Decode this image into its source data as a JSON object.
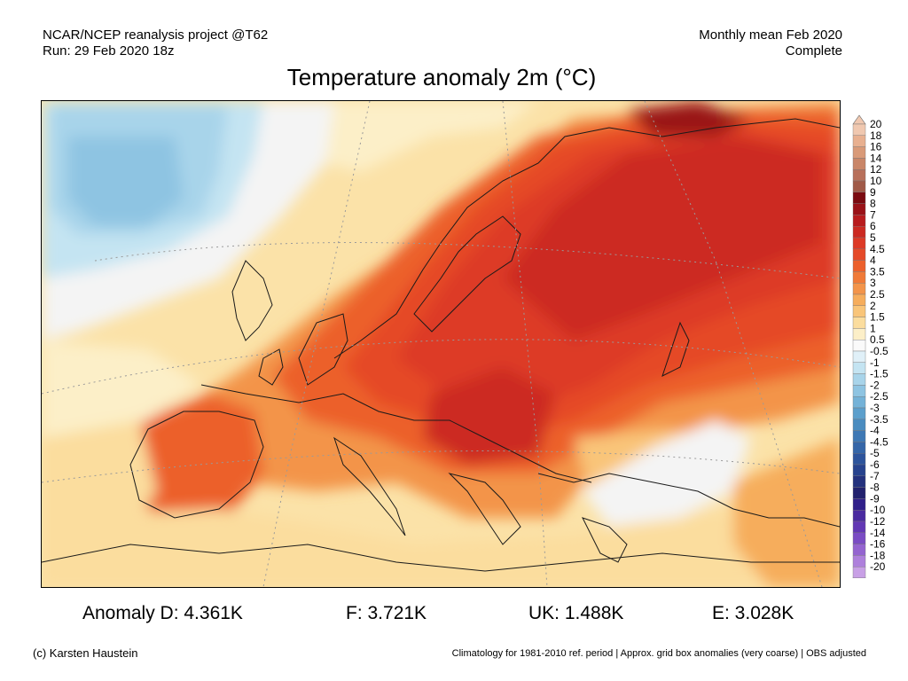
{
  "header": {
    "left_line1": "NCAR/NCEP reanalysis project @T62",
    "left_line2": "Run: 29 Feb 2020 18z",
    "right_line1": "Monthly mean Feb 2020",
    "right_line2": "Complete"
  },
  "title": "Temperature anomaly 2m (°C)",
  "legend": {
    "levels": [
      "20",
      "18",
      "16",
      "14",
      "12",
      "10",
      "9",
      "8",
      "7",
      "6",
      "5",
      "4.5",
      "4",
      "3.5",
      "3",
      "2.5",
      "2",
      "1.5",
      "1",
      "0.5",
      "-0.5",
      "-1",
      "-1.5",
      "-2",
      "-2.5",
      "-3",
      "-3.5",
      "-4",
      "-4.5",
      "-5",
      "-6",
      "-7",
      "-8",
      "-9",
      "-10",
      "-12",
      "-14",
      "-16",
      "-18",
      "-20"
    ],
    "colors": [
      "#f0c8b0",
      "#e8b090",
      "#d99a78",
      "#c98668",
      "#b8705a",
      "#a05a48",
      "#7a0a10",
      "#9a1218",
      "#b81c1e",
      "#cc2a22",
      "#dd3a26",
      "#e54a28",
      "#ec602c",
      "#f07a38",
      "#f3944a",
      "#f6ad5c",
      "#f9c579",
      "#fbdd9e",
      "#fcefc8",
      "#fafafa",
      "#e0f0f8",
      "#c4e4f2",
      "#a8d4ea",
      "#8ec4e2",
      "#74b2d8",
      "#5c9fcc",
      "#4a8cc0",
      "#3e78b4",
      "#3566a8",
      "#2d549c",
      "#27438e",
      "#24327e",
      "#22226e",
      "#30208a",
      "#4a2aa0",
      "#6238b4",
      "#7a4cc4",
      "#9464d0",
      "#ae80dc",
      "#c8a0e6"
    ]
  },
  "stats": {
    "d": "Anomaly D: 4.361K",
    "f": "F: 3.721K",
    "uk": "UK: 1.488K",
    "e": "E: 3.028K"
  },
  "footer": {
    "credit": "(c) Karsten Haustein",
    "climatology": "Climatology for 1981-2010 ref. period | Approx. grid box anomalies (very coarse) | OBS adjusted"
  }
}
